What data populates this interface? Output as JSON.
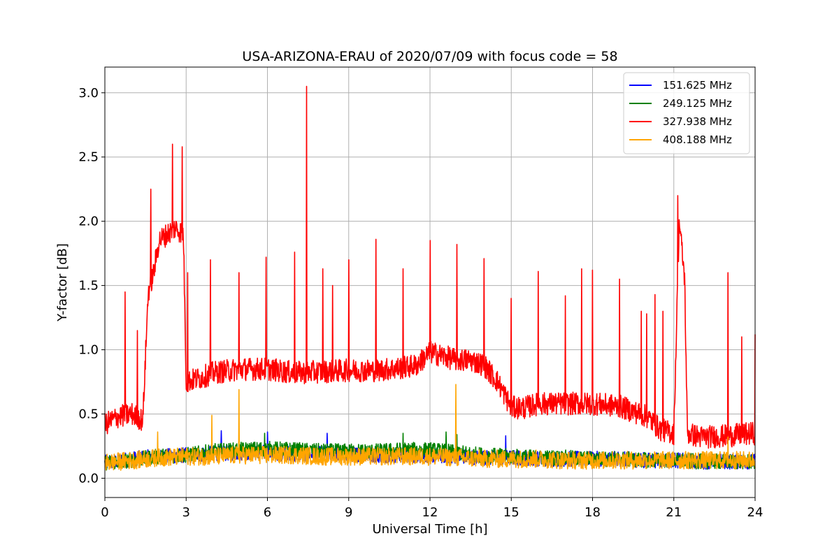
{
  "chart_data": {
    "type": "line",
    "title": "USA-ARIZONA-ERAU of 2020/07/09 with focus code = 58",
    "xlabel": "Universal Time [h]",
    "ylabel": "Y-factor [dB]",
    "xlim": [
      0,
      24
    ],
    "ylim": [
      -0.15,
      3.2
    ],
    "xticks": [
      0,
      3,
      6,
      9,
      12,
      15,
      18,
      21,
      24
    ],
    "xtick_labels": [
      "0",
      "3",
      "6",
      "9",
      "12",
      "15",
      "18",
      "21",
      "24"
    ],
    "yticks": [
      0.0,
      0.5,
      1.0,
      1.5,
      2.0,
      2.5,
      3.0
    ],
    "ytick_labels": [
      "0.0",
      "0.5",
      "1.0",
      "1.5",
      "2.0",
      "2.5",
      "3.0"
    ],
    "grid": true,
    "legend_position": "top-right",
    "series": [
      {
        "name": "151.625 MHz",
        "color": "#0000ff",
        "x": [
          0,
          1,
          2,
          3,
          4,
          5,
          6,
          7,
          8,
          9,
          10,
          11,
          12,
          13,
          14,
          15,
          16,
          17,
          18,
          19,
          20,
          21,
          22,
          23,
          24
        ],
        "y": [
          0.12,
          0.15,
          0.17,
          0.18,
          0.19,
          0.2,
          0.2,
          0.19,
          0.19,
          0.19,
          0.18,
          0.18,
          0.18,
          0.17,
          0.16,
          0.16,
          0.15,
          0.15,
          0.15,
          0.15,
          0.14,
          0.14,
          0.13,
          0.13,
          0.13
        ],
        "noise": 0.06,
        "spikes": [
          [
            4.3,
            0.37
          ],
          [
            6.0,
            0.36
          ],
          [
            8.2,
            0.35
          ],
          [
            14.8,
            0.33
          ]
        ]
      },
      {
        "name": "249.125 MHz",
        "color": "#008000",
        "x": [
          0,
          1,
          2,
          3,
          4,
          5,
          6,
          7,
          8,
          9,
          10,
          11,
          12,
          13,
          14,
          15,
          16,
          17,
          18,
          19,
          20,
          21,
          22,
          23,
          24
        ],
        "y": [
          0.12,
          0.14,
          0.17,
          0.18,
          0.21,
          0.22,
          0.23,
          0.22,
          0.21,
          0.21,
          0.21,
          0.22,
          0.22,
          0.2,
          0.18,
          0.17,
          0.16,
          0.16,
          0.15,
          0.15,
          0.14,
          0.14,
          0.13,
          0.13,
          0.13
        ],
        "noise": 0.06,
        "spikes": [
          [
            5.9,
            0.35
          ],
          [
            11.0,
            0.35
          ],
          [
            12.6,
            0.36
          ],
          [
            13.0,
            0.34
          ]
        ]
      },
      {
        "name": "327.938 MHz",
        "color": "#ff0000",
        "x": [
          0,
          0.5,
          1.0,
          1.4,
          1.6,
          1.8,
          2.0,
          2.3,
          2.6,
          2.9,
          3.0,
          3.5,
          4.0,
          5.0,
          6.0,
          7.0,
          8.0,
          9.0,
          10.0,
          11.0,
          11.5,
          12.0,
          12.5,
          13.0,
          13.5,
          14.0,
          14.5,
          15.0,
          15.5,
          16.0,
          17.0,
          18.0,
          19.0,
          20.0,
          20.5,
          21.0,
          21.2,
          21.4,
          21.5,
          22.0,
          23.0,
          24.0
        ],
        "y": [
          0.42,
          0.48,
          0.5,
          0.45,
          1.45,
          1.6,
          1.85,
          1.9,
          1.95,
          1.9,
          0.75,
          0.78,
          0.82,
          0.85,
          0.85,
          0.82,
          0.83,
          0.84,
          0.84,
          0.86,
          0.88,
          0.98,
          0.95,
          0.92,
          0.92,
          0.88,
          0.75,
          0.55,
          0.55,
          0.58,
          0.58,
          0.58,
          0.56,
          0.48,
          0.38,
          0.35,
          2.0,
          1.55,
          0.35,
          0.32,
          0.33,
          0.35
        ],
        "noise": 0.09,
        "spikes": [
          [
            0.75,
            1.45
          ],
          [
            1.2,
            1.15
          ],
          [
            1.7,
            2.25
          ],
          [
            2.5,
            2.6
          ],
          [
            2.85,
            2.58
          ],
          [
            3.05,
            1.6
          ],
          [
            3.9,
            1.7
          ],
          [
            4.95,
            1.6
          ],
          [
            5.95,
            1.72
          ],
          [
            7.0,
            1.76
          ],
          [
            7.45,
            3.05
          ],
          [
            8.05,
            1.63
          ],
          [
            8.4,
            1.5
          ],
          [
            9.0,
            1.7
          ],
          [
            10.0,
            1.86
          ],
          [
            11.0,
            1.63
          ],
          [
            12.0,
            1.85
          ],
          [
            13.0,
            1.82
          ],
          [
            14.0,
            1.71
          ],
          [
            15.0,
            1.4
          ],
          [
            16.0,
            1.61
          ],
          [
            17.0,
            1.42
          ],
          [
            17.6,
            1.63
          ],
          [
            18.0,
            1.62
          ],
          [
            19.0,
            1.55
          ],
          [
            19.8,
            1.3
          ],
          [
            20.0,
            1.28
          ],
          [
            20.3,
            1.43
          ],
          [
            20.6,
            1.3
          ],
          [
            21.15,
            2.2
          ],
          [
            23.0,
            1.6
          ],
          [
            23.5,
            1.1
          ],
          [
            24.0,
            1.12
          ]
        ]
      },
      {
        "name": "408.188 MHz",
        "color": "#ffa500",
        "x": [
          0,
          1,
          2,
          3,
          4,
          5,
          6,
          7,
          8,
          9,
          10,
          11,
          12,
          13,
          14,
          15,
          16,
          17,
          18,
          19,
          20,
          21,
          22,
          23,
          24
        ],
        "y": [
          0.12,
          0.14,
          0.16,
          0.17,
          0.17,
          0.18,
          0.18,
          0.18,
          0.17,
          0.17,
          0.17,
          0.17,
          0.17,
          0.16,
          0.15,
          0.15,
          0.15,
          0.14,
          0.14,
          0.14,
          0.14,
          0.14,
          0.14,
          0.14,
          0.14
        ],
        "noise": 0.07,
        "spikes": [
          [
            1.95,
            0.36
          ],
          [
            3.95,
            0.49
          ],
          [
            4.95,
            0.69
          ],
          [
            12.95,
            0.73
          ],
          [
            23.0,
            0.32
          ]
        ]
      }
    ]
  }
}
